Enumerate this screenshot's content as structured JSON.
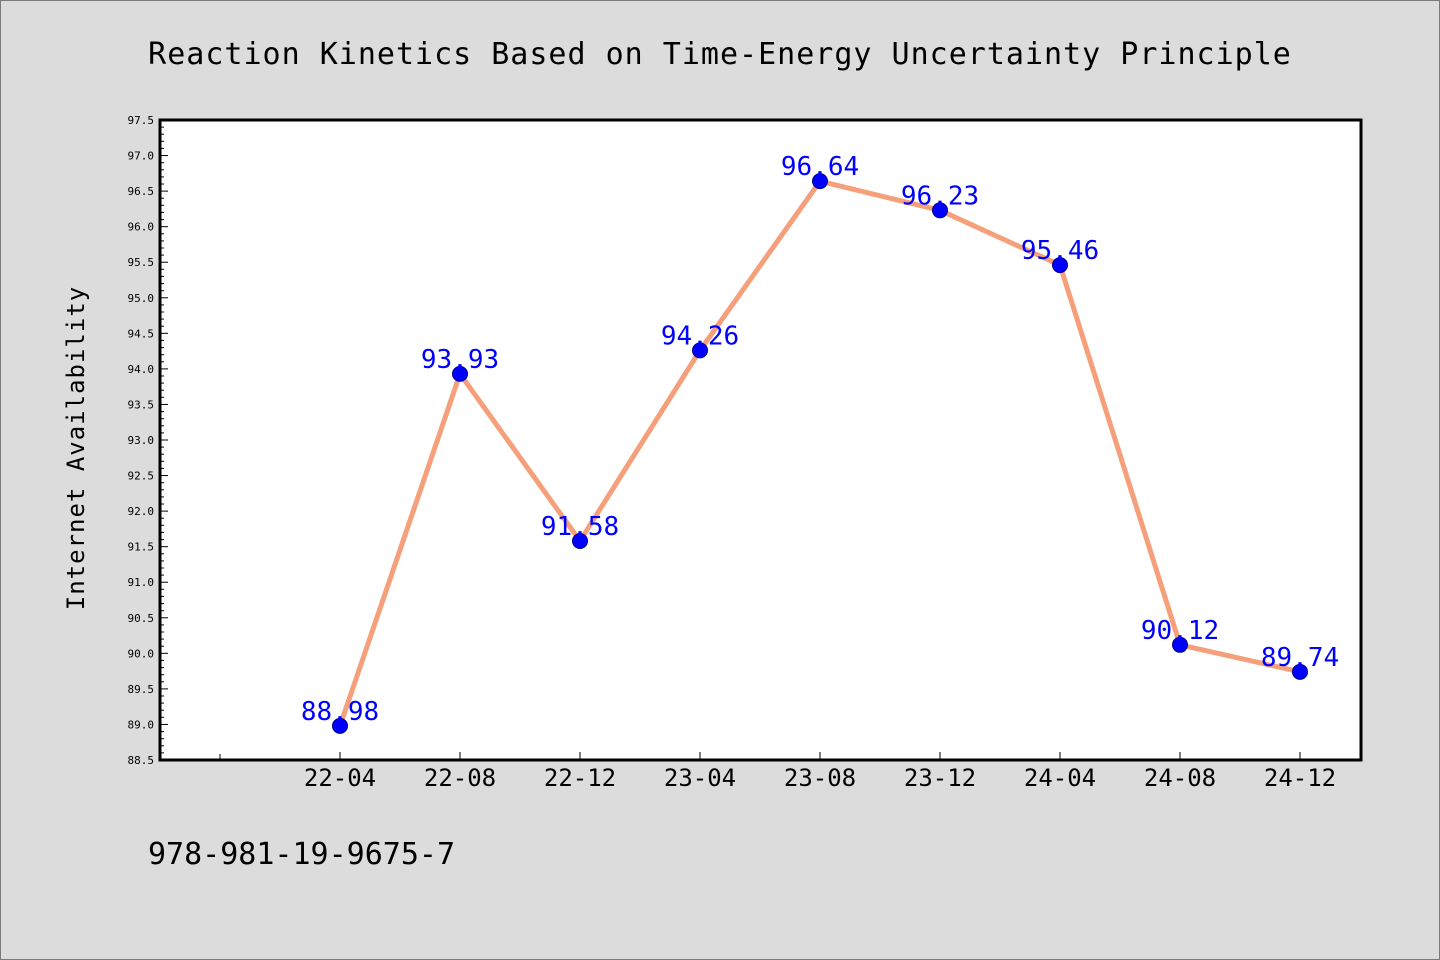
{
  "chart_data": {
    "type": "line",
    "title": "Reaction Kinetics Based on Time-Energy Uncertainty Principle",
    "xlabel": "",
    "ylabel": "Internet Availability",
    "categories": [
      "22-04",
      "22-08",
      "22-12",
      "23-04",
      "23-08",
      "23-12",
      "24-04",
      "24-08",
      "24-12"
    ],
    "series": [
      {
        "values": [
          88.98,
          93.93,
          91.58,
          94.26,
          96.64,
          96.23,
          95.46,
          90.12,
          89.74
        ],
        "data_labels": [
          "88.98",
          "93.93",
          "91.58",
          "94.26",
          "96.64",
          "96.23",
          "95.46",
          "90.12",
          "89.74"
        ],
        "line_color": "#f5a07a",
        "marker_color": "#0000ff"
      }
    ],
    "ylim": [
      88.5,
      97.5
    ],
    "yticks": [
      "88.5",
      "89.0",
      "89.5",
      "90.0",
      "90.5",
      "91.0",
      "91.5",
      "92.0",
      "92.5",
      "93.0",
      "93.5",
      "94.0",
      "94.5",
      "95.0",
      "95.5",
      "96.0",
      "96.5",
      "97.0",
      "97.5"
    ],
    "grid": false,
    "legend": "none",
    "annotation": "978-981-19-9675-7",
    "background_color": "#dcdcdc",
    "plot_background_color": "#ffffff"
  }
}
